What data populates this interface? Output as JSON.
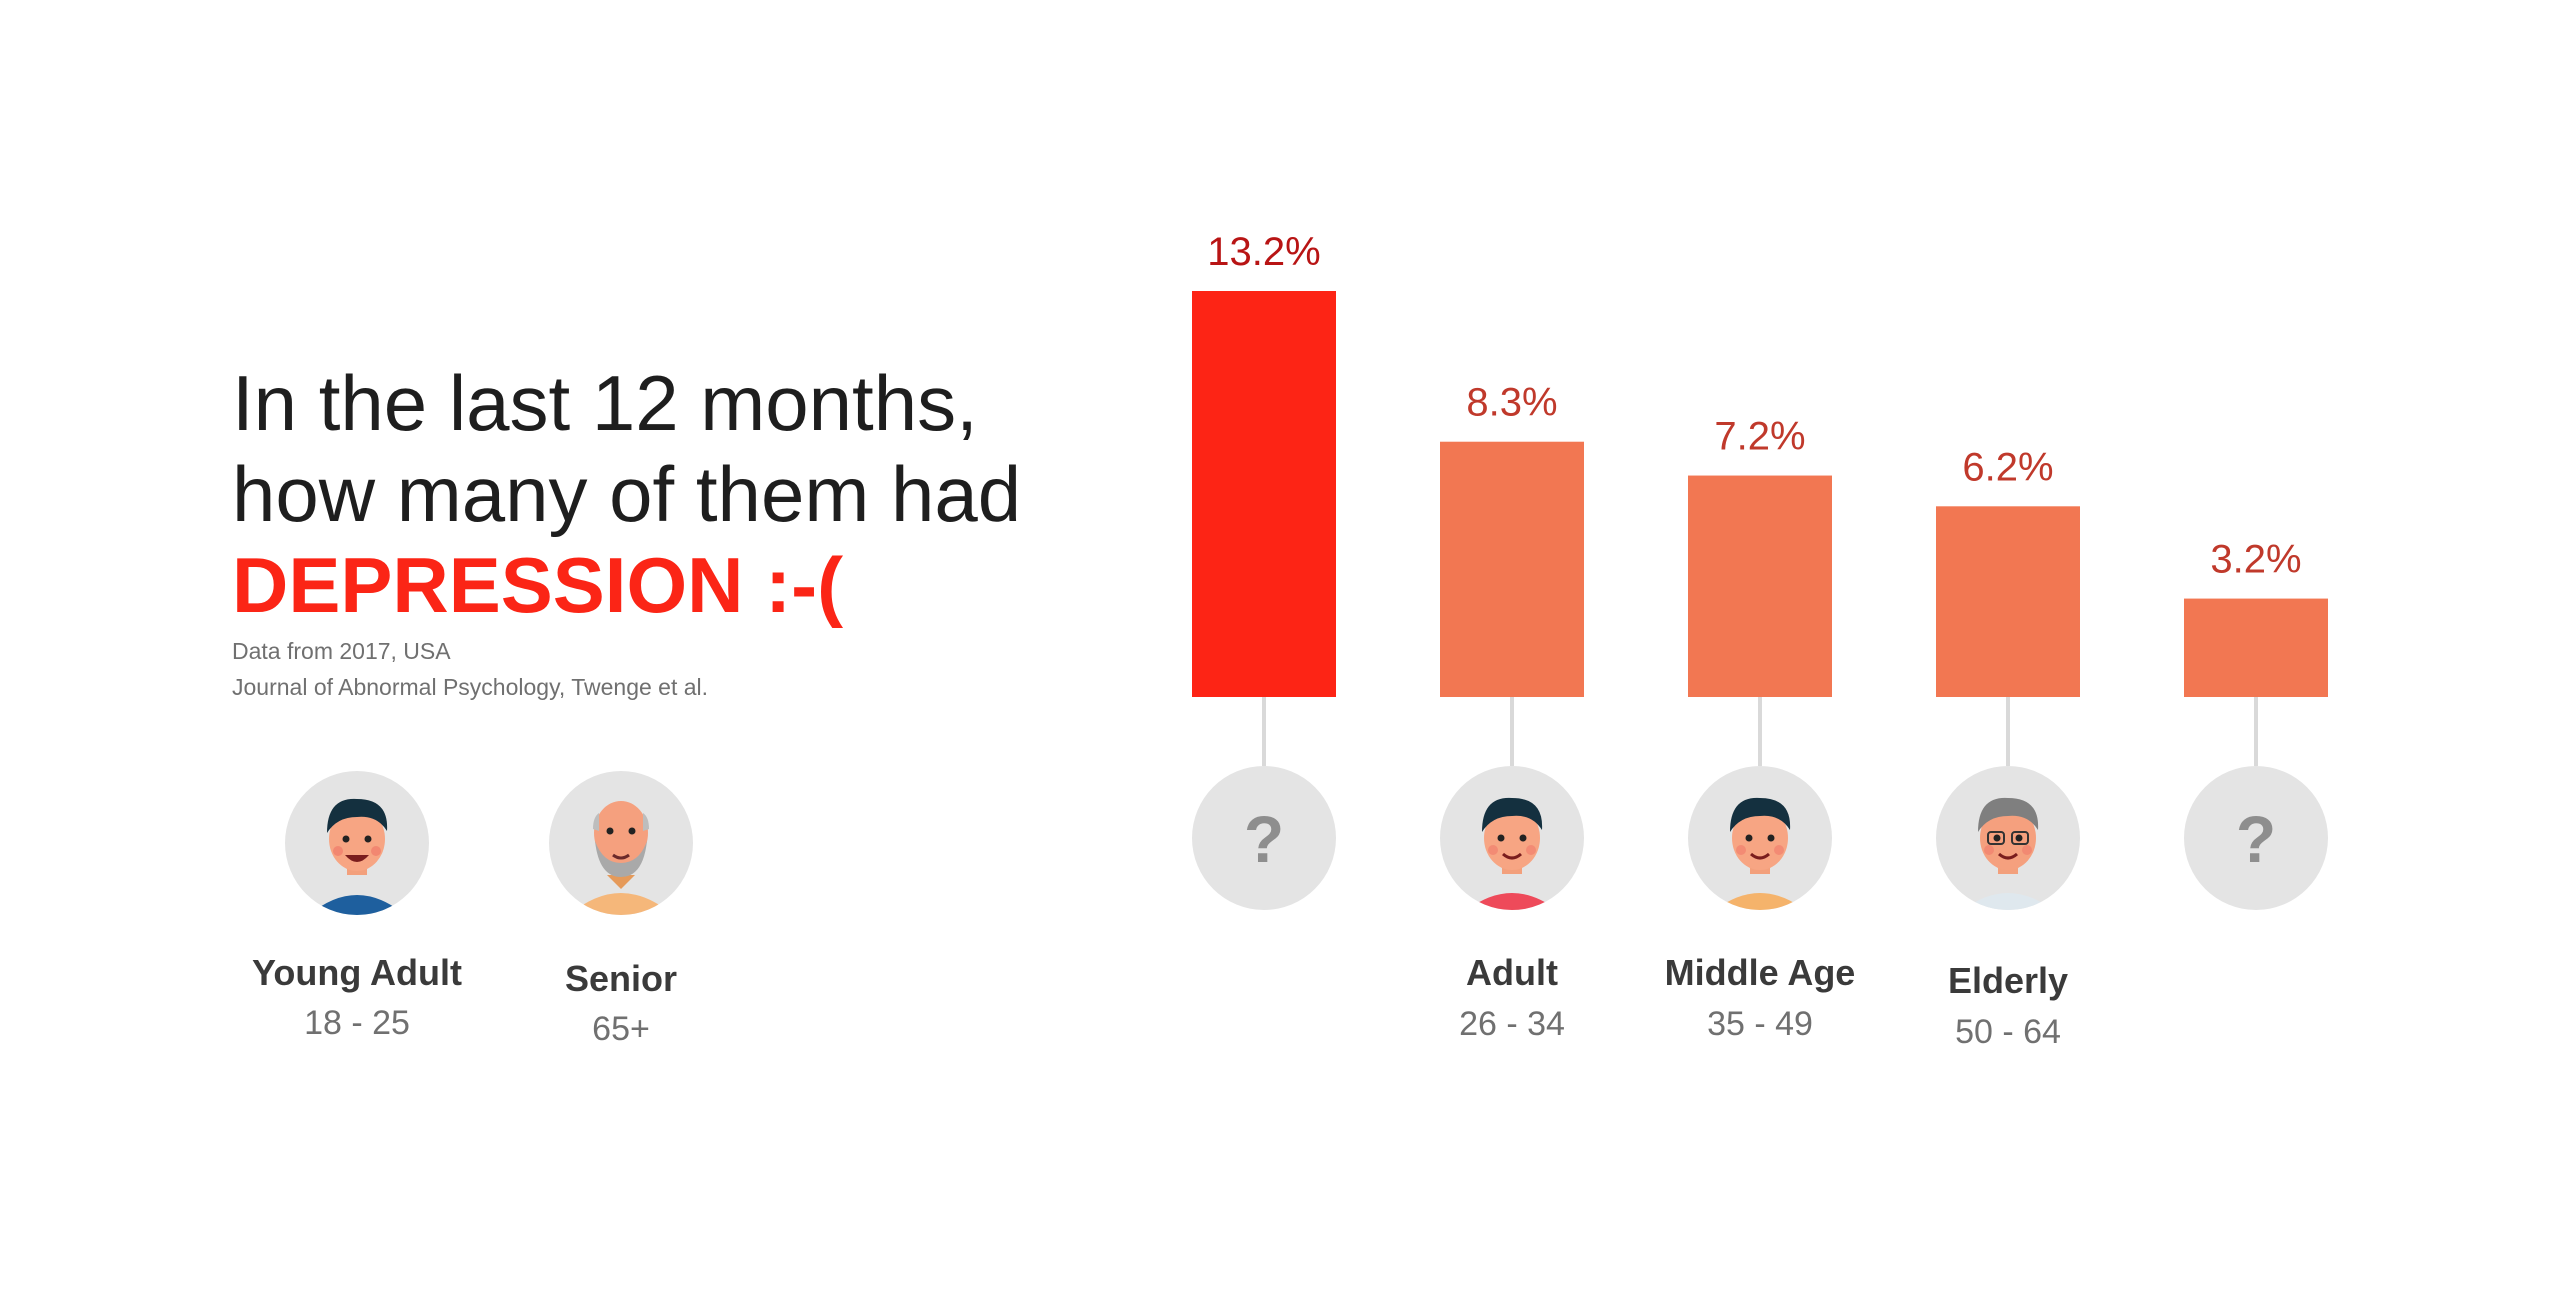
{
  "headline": {
    "line1": "In the last 12 months,",
    "line2": "how many of them had",
    "emphasis": "DEPRESSION :-("
  },
  "source": {
    "line1": "Data from 2017, USA",
    "line2": "Journal of Abnormal Psychology, Twenge et al."
  },
  "colors": {
    "highlight_bar": "#fd2415",
    "bar": "#f27752",
    "label": "#c0392b",
    "highlight_label": "#b81414",
    "connector": "#d9d9d9",
    "avatar_bg": "#e4e4e4"
  },
  "legend_people": [
    {
      "name": "Young Adult",
      "ages": "18 - 25",
      "icon": "young-adult-avatar-icon"
    },
    {
      "name": "Senior",
      "ages": "65+",
      "icon": "senior-avatar-icon"
    }
  ],
  "chart_data": {
    "type": "bar",
    "values": [
      13.2,
      8.3,
      7.2,
      6.2,
      3.2
    ],
    "labels": [
      "13.2%",
      "8.3%",
      "7.2%",
      "6.2%",
      "3.2%"
    ],
    "categories": [
      {
        "name": "",
        "ages": "",
        "avatar": "unknown",
        "icon": "question-mark-icon"
      },
      {
        "name": "Adult",
        "ages": "26 - 34",
        "avatar": "adult",
        "icon": "adult-avatar-icon"
      },
      {
        "name": "Middle Age",
        "ages": "35 - 49",
        "avatar": "middle",
        "icon": "middle-age-avatar-icon"
      },
      {
        "name": "Elderly",
        "ages": "50 - 64",
        "avatar": "elderly",
        "icon": "elderly-avatar-icon"
      },
      {
        "name": "",
        "ages": "",
        "avatar": "unknown",
        "icon": "question-mark-icon"
      }
    ],
    "highlight_index": 0,
    "ylim": [
      0,
      13.2
    ],
    "axes_visible": false,
    "grid": false
  }
}
